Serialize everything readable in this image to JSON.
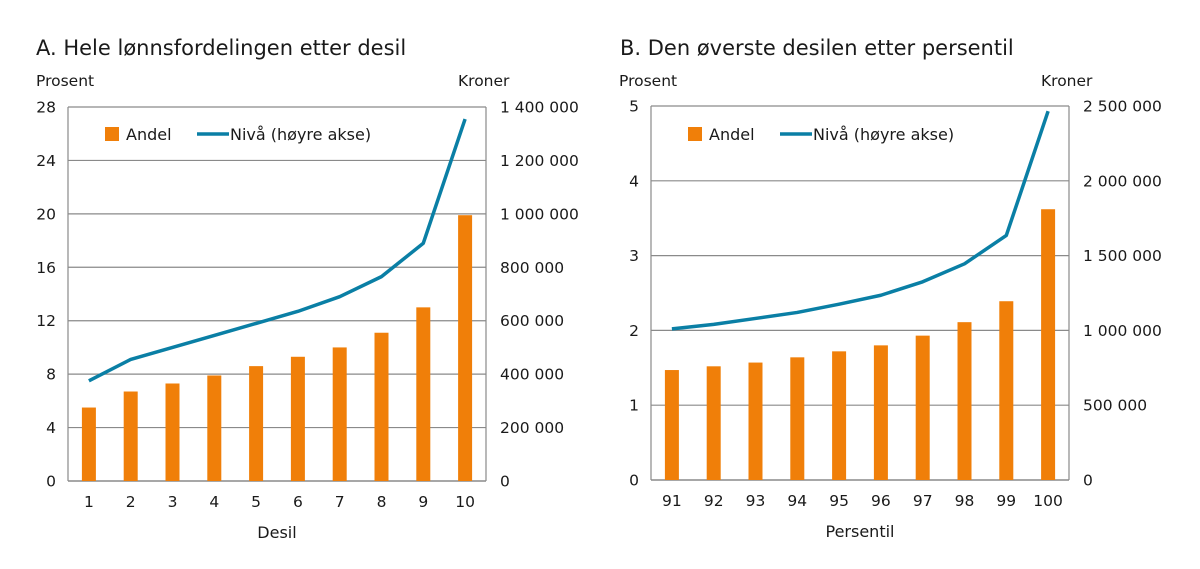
{
  "colors": {
    "bar": "#f07f09",
    "line": "#0a7fa5",
    "grid": "#8a8a8a"
  },
  "chart_data": [
    {
      "type": "bar+line",
      "title": "A.  Hele lønnsfordelingen etter desil",
      "ylabel_left": "Prosent",
      "ylabel_right": "Kroner",
      "xlabel": "Desil",
      "categories": [
        "1",
        "2",
        "3",
        "4",
        "5",
        "6",
        "7",
        "8",
        "9",
        "10"
      ],
      "ylim_left": [
        0,
        28
      ],
      "yticks_left": [
        "0",
        "4",
        "8",
        "12",
        "16",
        "20",
        "24",
        "28"
      ],
      "ylim_right": [
        0,
        1400000
      ],
      "yticks_right": [
        "0",
        "200 000",
        "400 000",
        "600 000",
        "800 000",
        "1 000 000",
        "1 200 000",
        "1 400 000"
      ],
      "grid": true,
      "legend_placement": "top-left",
      "series": [
        {
          "name": "Andel",
          "type": "bar",
          "axis": "left",
          "values": [
            5.5,
            6.7,
            7.3,
            7.9,
            8.6,
            9.3,
            10.0,
            11.1,
            13.0,
            19.9
          ]
        },
        {
          "name": "Nivå (høyre akse)",
          "type": "line",
          "axis": "right",
          "values": [
            375000,
            455000,
            500000,
            545000,
            590000,
            635000,
            690000,
            765000,
            890000,
            1355000
          ]
        }
      ]
    },
    {
      "type": "bar+line",
      "title": "B.  Den øverste desilen etter persentil",
      "ylabel_left": "Prosent",
      "ylabel_right": "Kroner",
      "xlabel": "Persentil",
      "categories": [
        "91",
        "92",
        "93",
        "94",
        "95",
        "96",
        "97",
        "98",
        "99",
        "100"
      ],
      "ylim_left": [
        0,
        5
      ],
      "yticks_left": [
        "0",
        "1",
        "2",
        "3",
        "4",
        "5"
      ],
      "ylim_right": [
        0,
        2500000
      ],
      "yticks_right": [
        "0",
        "500 000",
        "1 000 000",
        "1 500 000",
        "2 000 000",
        "2 500 000"
      ],
      "grid": true,
      "legend_placement": "top-left",
      "series": [
        {
          "name": "Andel",
          "type": "bar",
          "axis": "left",
          "values": [
            1.47,
            1.52,
            1.57,
            1.64,
            1.72,
            1.8,
            1.93,
            2.11,
            2.39,
            3.62
          ]
        },
        {
          "name": "Nivå (høyre akse)",
          "type": "line",
          "axis": "right",
          "values": [
            1010000,
            1040000,
            1080000,
            1120000,
            1175000,
            1235000,
            1325000,
            1445000,
            1635000,
            2465000
          ]
        }
      ]
    }
  ]
}
